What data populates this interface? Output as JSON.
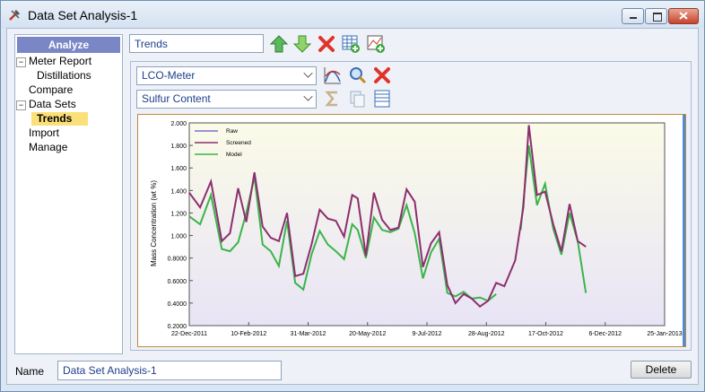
{
  "window": {
    "title": "Data Set Analysis-1"
  },
  "nav": {
    "header": "Analyze",
    "items": [
      {
        "label": "Meter Report"
      },
      {
        "label": "Distillations"
      },
      {
        "label": "Compare"
      },
      {
        "label": "Data Sets"
      },
      {
        "label": "Trends"
      },
      {
        "label": "Import"
      },
      {
        "label": "Manage"
      }
    ]
  },
  "toolbar": {
    "view_name": "Trends"
  },
  "selectors": {
    "meter": "LCO-Meter",
    "property": "Sulfur Content"
  },
  "footer": {
    "name_label": "Name",
    "name_value": "Data Set Analysis-1",
    "delete_label": "Delete"
  },
  "colors": {
    "raw": "#7a6fd0",
    "screened": "#8b2f6e",
    "model": "#3bb44a",
    "accent": "#7b86c7"
  },
  "chart_data": {
    "type": "line",
    "ylabel": "Mass Concentration (wt %)",
    "xlabel": "",
    "ylim": [
      0.2,
      2.0
    ],
    "x_ticks": [
      "22-Dec-2011",
      "10-Feb-2012",
      "31-Mar-2012",
      "20-May-2012",
      "9-Jul-2012",
      "28-Aug-2012",
      "17-Oct-2012",
      "6-Dec-2012",
      "25-Jan-2013"
    ],
    "y_ticks": [
      "0.2000",
      "0.4000",
      "0.6000",
      "0.8000",
      "1.000",
      "1.200",
      "1.400",
      "1.600",
      "1.800",
      "2.000"
    ],
    "legend": [
      "Raw",
      "Screened",
      "Model"
    ],
    "series": [
      {
        "name": "Screened",
        "x": [
          0,
          4,
          8,
          12,
          15,
          18,
          21,
          24,
          27,
          30,
          33,
          36,
          39,
          42,
          45,
          48,
          51,
          54,
          57,
          60,
          62,
          65,
          68,
          71,
          74,
          77,
          80,
          83,
          86,
          89,
          92,
          95,
          98,
          101,
          104,
          107,
          110,
          113,
          116,
          120,
          123,
          125,
          128,
          131,
          134,
          137,
          140,
          143,
          146
        ],
        "y": [
          1.38,
          1.25,
          1.48,
          0.95,
          1.02,
          1.42,
          1.12,
          1.56,
          1.08,
          0.98,
          0.95,
          1.2,
          0.64,
          0.66,
          0.92,
          1.23,
          1.15,
          1.13,
          0.99,
          1.36,
          1.33,
          0.82,
          1.38,
          1.14,
          1.05,
          1.07,
          1.41,
          1.3,
          0.72,
          0.93,
          1.03,
          0.56,
          0.4,
          0.48,
          0.44,
          0.37,
          0.42,
          0.58,
          0.55,
          0.78,
          1.25,
          1.98,
          1.36,
          1.39,
          1.1,
          0.86,
          1.28,
          0.95,
          0.9
        ]
      },
      {
        "name": "Model",
        "x": [
          0,
          4,
          8,
          12,
          15,
          18,
          21,
          24,
          27,
          30,
          33,
          36,
          39,
          42,
          45,
          48,
          51,
          54,
          57,
          60,
          62,
          65,
          68,
          71,
          74,
          77,
          80,
          83,
          86,
          89,
          92,
          95,
          98,
          101,
          104,
          107,
          110,
          113
        ],
        "y": [
          1.17,
          1.1,
          1.36,
          0.88,
          0.86,
          0.94,
          1.2,
          1.52,
          0.92,
          0.86,
          0.73,
          1.13,
          0.58,
          0.52,
          0.83,
          1.04,
          0.92,
          0.86,
          0.79,
          1.1,
          1.05,
          0.8,
          1.16,
          1.05,
          1.03,
          1.06,
          1.27,
          1.02,
          0.62,
          0.85,
          0.97,
          0.49,
          0.46,
          0.5,
          0.44,
          0.45,
          0.42,
          0.48
        ]
      },
      {
        "name": "Model (late)",
        "x": [
          122,
          125,
          128,
          131,
          134,
          137,
          140,
          143,
          146
        ],
        "y": [
          1.05,
          1.8,
          1.27,
          1.46,
          1.06,
          0.83,
          1.2,
          0.95,
          0.49
        ]
      }
    ]
  }
}
